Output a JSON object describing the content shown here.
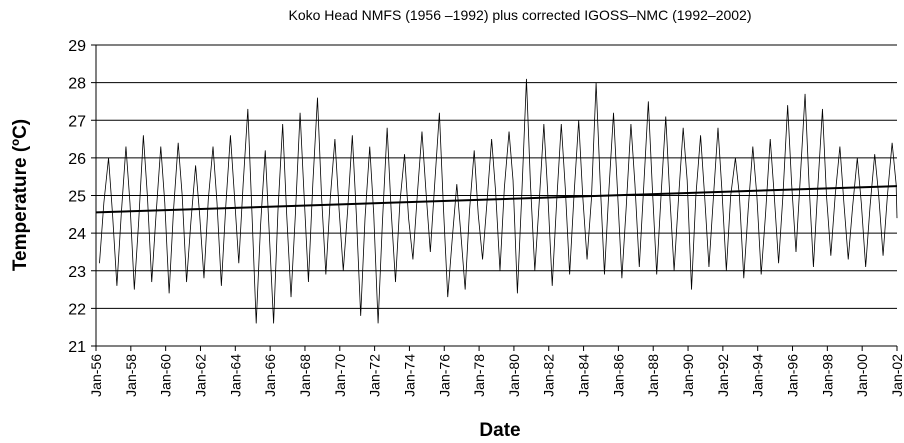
{
  "chart_data": {
    "type": "line",
    "title": "Koko Head NMFS (1956 –1992) plus corrected IGOSS–NMC (1992–2002)",
    "x_label": "Date",
    "y_label": "Temperature (ºC)",
    "xlim": [
      1956,
      2002
    ],
    "ylim": [
      21,
      29
    ],
    "yticks": [
      21,
      22,
      23,
      24,
      25,
      26,
      27,
      28,
      29
    ],
    "xticks": [
      {
        "value": 1956,
        "label": "Jan-56"
      },
      {
        "value": 1958,
        "label": "Jan-58"
      },
      {
        "value": 1960,
        "label": "Jan-60"
      },
      {
        "value": 1962,
        "label": "Jan-62"
      },
      {
        "value": 1964,
        "label": "Jan-64"
      },
      {
        "value": 1966,
        "label": "Jan-66"
      },
      {
        "value": 1968,
        "label": "Jan-68"
      },
      {
        "value": 1970,
        "label": "Jan-70"
      },
      {
        "value": 1972,
        "label": "Jan-72"
      },
      {
        "value": 1974,
        "label": "Jan-74"
      },
      {
        "value": 1976,
        "label": "Jan-76"
      },
      {
        "value": 1978,
        "label": "Jan-78"
      },
      {
        "value": 1980,
        "label": "Jan-80"
      },
      {
        "value": 1982,
        "label": "Jan-82"
      },
      {
        "value": 1984,
        "label": "Jan-84"
      },
      {
        "value": 1986,
        "label": "Jan-86"
      },
      {
        "value": 1988,
        "label": "Jan-88"
      },
      {
        "value": 1990,
        "label": "Jan-90"
      },
      {
        "value": 1992,
        "label": "Jan-92"
      },
      {
        "value": 1994,
        "label": "Jan-94"
      },
      {
        "value": 1996,
        "label": "Jan-96"
      },
      {
        "value": 1998,
        "label": "Jan-98"
      },
      {
        "value": 2000,
        "label": "Jan-00"
      },
      {
        "value": 2002,
        "label": "Jan-02"
      }
    ],
    "grid": true,
    "series": [
      {
        "color": "#000000",
        "width": 0.8,
        "x": [
          1956.2,
          1956.45,
          1956.72,
          1956.95,
          1957.2,
          1957.45,
          1957.72,
          1957.95,
          1958.2,
          1958.45,
          1958.72,
          1958.95,
          1959.2,
          1959.45,
          1959.72,
          1959.95,
          1960.2,
          1960.45,
          1960.72,
          1960.95,
          1961.2,
          1961.45,
          1961.72,
          1961.95,
          1962.2,
          1962.45,
          1962.72,
          1962.95,
          1963.2,
          1963.45,
          1963.72,
          1963.95,
          1964.2,
          1964.45,
          1964.72,
          1964.95,
          1965.2,
          1965.45,
          1965.72,
          1965.95,
          1966.2,
          1966.45,
          1966.72,
          1966.95,
          1967.2,
          1967.45,
          1967.72,
          1967.95,
          1968.2,
          1968.45,
          1968.72,
          1968.95,
          1969.2,
          1969.45,
          1969.72,
          1969.95,
          1970.2,
          1970.45,
          1970.72,
          1970.95,
          1971.2,
          1971.45,
          1971.72,
          1971.95,
          1972.2,
          1972.45,
          1972.72,
          1972.95,
          1973.2,
          1973.45,
          1973.72,
          1973.95,
          1974.2,
          1974.45,
          1974.72,
          1974.95,
          1975.2,
          1975.45,
          1975.72,
          1975.95,
          1976.2,
          1976.45,
          1976.72,
          1976.95,
          1977.2,
          1977.45,
          1977.72,
          1977.95,
          1978.2,
          1978.45,
          1978.72,
          1978.95,
          1979.2,
          1979.45,
          1979.72,
          1979.95,
          1980.2,
          1980.45,
          1980.72,
          1980.95,
          1981.2,
          1981.45,
          1981.72,
          1981.95,
          1982.2,
          1982.45,
          1982.72,
          1982.95,
          1983.2,
          1983.45,
          1983.72,
          1983.95,
          1984.2,
          1984.45,
          1984.72,
          1984.95,
          1985.2,
          1985.45,
          1985.72,
          1985.95,
          1986.2,
          1986.45,
          1986.72,
          1986.95,
          1987.2,
          1987.45,
          1987.72,
          1987.95,
          1988.2,
          1988.45,
          1988.72,
          1988.95,
          1989.2,
          1989.45,
          1989.72,
          1989.95,
          1990.2,
          1990.45,
          1990.72,
          1990.95,
          1991.2,
          1991.45,
          1991.72,
          1991.95,
          1992.2,
          1992.45,
          1992.72,
          1992.95,
          1993.2,
          1993.45,
          1993.72,
          1993.95,
          1994.2,
          1994.45,
          1994.72,
          1994.95,
          1995.2,
          1995.45,
          1995.72,
          1995.95,
          1996.2,
          1996.45,
          1996.72,
          1996.95,
          1997.2,
          1997.45,
          1997.72,
          1997.95,
          1998.2,
          1998.45,
          1998.72,
          1998.95,
          1999.2,
          1999.45,
          1999.72,
          1999.95,
          2000.2,
          2000.45,
          2000.72,
          2000.95,
          2001.2,
          2001.45,
          2001.72,
          2001.95,
          2002.0
        ],
        "values": [
          23.2,
          24.8,
          26.0,
          24.5,
          22.6,
          24.5,
          26.3,
          24.8,
          22.5,
          24.3,
          26.6,
          25.0,
          22.7,
          24.5,
          26.3,
          24.8,
          22.4,
          24.6,
          26.4,
          25.0,
          22.7,
          24.3,
          25.8,
          24.5,
          22.8,
          24.9,
          26.3,
          24.8,
          22.6,
          24.7,
          26.6,
          25.0,
          23.2,
          25.3,
          27.3,
          24.6,
          21.6,
          24.2,
          26.2,
          24.0,
          21.6,
          24.6,
          26.9,
          24.5,
          22.3,
          24.5,
          27.2,
          25.0,
          22.7,
          25.3,
          27.6,
          25.0,
          22.9,
          24.9,
          26.5,
          24.7,
          23.0,
          24.6,
          26.6,
          24.5,
          21.8,
          24.4,
          26.3,
          24.5,
          21.6,
          24.3,
          26.8,
          24.6,
          22.7,
          24.8,
          26.1,
          24.4,
          23.3,
          25.0,
          26.7,
          25.1,
          23.5,
          25.3,
          27.2,
          24.7,
          22.3,
          23.8,
          25.3,
          24.0,
          22.5,
          24.6,
          26.2,
          24.5,
          23.3,
          24.8,
          26.5,
          25.1,
          23.0,
          25.2,
          26.7,
          25.4,
          22.4,
          25.0,
          28.1,
          25.3,
          23.0,
          24.8,
          26.9,
          25.0,
          22.6,
          24.8,
          26.9,
          25.2,
          22.9,
          25.0,
          27.0,
          25.0,
          23.3,
          24.9,
          28.0,
          25.4,
          22.9,
          25.1,
          27.2,
          25.1,
          22.8,
          24.7,
          26.9,
          25.3,
          23.1,
          25.2,
          27.5,
          25.2,
          22.9,
          25.0,
          27.1,
          25.0,
          23.0,
          24.9,
          26.8,
          25.4,
          22.5,
          25.0,
          26.6,
          25.0,
          23.1,
          24.9,
          26.8,
          25.1,
          23.0,
          25.0,
          26.0,
          25.0,
          22.8,
          24.6,
          26.3,
          25.0,
          22.9,
          24.5,
          26.5,
          25.0,
          23.2,
          25.0,
          27.4,
          25.3,
          23.5,
          25.5,
          27.7,
          25.3,
          23.1,
          25.2,
          27.3,
          25.0,
          23.4,
          25.0,
          26.3,
          24.8,
          23.3,
          24.7,
          26.0,
          24.8,
          23.1,
          24.7,
          26.1,
          25.0,
          23.4,
          25.0,
          26.4,
          25.3,
          24.4
        ]
      },
      {
        "color": "#000000",
        "width": 2,
        "x": [
          1956,
          2002
        ],
        "values": [
          24.55,
          25.25
        ]
      }
    ]
  }
}
